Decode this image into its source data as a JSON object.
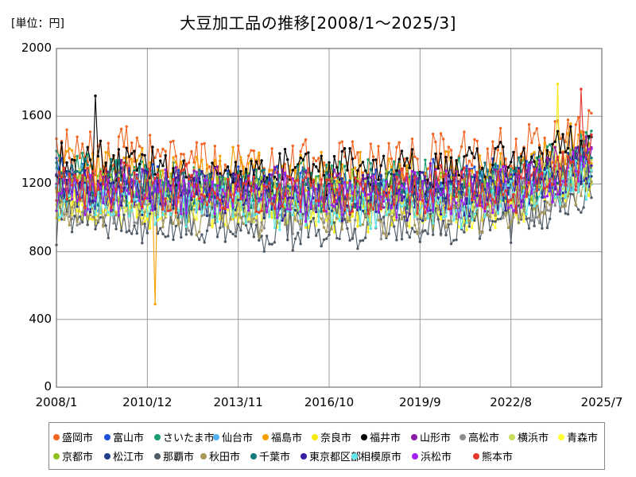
{
  "header": {
    "unit_label": "[単位：円]",
    "title": "大豆加工品の推移[2008/1～2025/3]"
  },
  "chart_data": {
    "type": "line",
    "title": "大豆加工品の推移[2008/1～2025/3]",
    "unit": "[単位：円]",
    "xlabel": "",
    "ylabel": "",
    "ylim": [
      0,
      2000
    ],
    "y_ticks": [
      "0",
      "400",
      "800",
      "1200",
      "1600",
      "2000"
    ],
    "x_range": [
      "2008/1",
      "2025/7"
    ],
    "x_ticks": [
      "2008/1",
      "2010/12",
      "2013/11",
      "2016/10",
      "2019/9",
      "2022/8",
      "2025/7"
    ],
    "grid": true,
    "legend_position": "bottom",
    "series": [
      {
        "name": "盛岡市",
        "color": "#f26522",
        "base": 1380,
        "amp": 150,
        "extremes": [],
        "values": []
      },
      {
        "name": "富山市",
        "color": "#1f4fd8",
        "base": 1230,
        "amp": 130,
        "extremes": [],
        "values": []
      },
      {
        "name": "さいたま市",
        "color": "#1a9e6e",
        "base": 1260,
        "amp": 120,
        "extremes": [],
        "values": []
      },
      {
        "name": "仙台市",
        "color": "#4fb3f0",
        "base": 1180,
        "amp": 110,
        "extremes": [],
        "values": []
      },
      {
        "name": "福島市",
        "color": "#f5a000",
        "base": 1300,
        "amp": 140,
        "extremes": [
          {
            "date": "2011/3",
            "value": 490
          }
        ],
        "values": []
      },
      {
        "name": "奈良市",
        "color": "#f4ea0f",
        "base": 1120,
        "amp": 120,
        "extremes": [
          {
            "date": "2024/2",
            "value": 1790
          }
        ],
        "values": []
      },
      {
        "name": "福井市",
        "color": "#000000",
        "base": 1330,
        "amp": 120,
        "extremes": [
          {
            "date": "2009/4",
            "value": 1720
          }
        ],
        "values": []
      },
      {
        "name": "山形市",
        "color": "#8a1ca8",
        "base": 1230,
        "amp": 120,
        "extremes": [],
        "values": []
      },
      {
        "name": "高松市",
        "color": "#8c8c8c",
        "base": 1080,
        "amp": 120,
        "extremes": [],
        "values": []
      },
      {
        "name": "横浜市",
        "color": "#c6de5a",
        "base": 1160,
        "amp": 110,
        "extremes": [],
        "values": []
      },
      {
        "name": "青森市",
        "color": "#ffff33",
        "base": 1100,
        "amp": 110,
        "extremes": [],
        "values": []
      },
      {
        "name": "京都市",
        "color": "#8fc31f",
        "base": 1200,
        "amp": 110,
        "extremes": [],
        "values": []
      },
      {
        "name": "松江市",
        "color": "#1e3f8a",
        "base": 1170,
        "amp": 110,
        "extremes": [],
        "values": []
      },
      {
        "name": "那覇市",
        "color": "#4f5b66",
        "base": 1000,
        "amp": 110,
        "extremes": [
          {
            "date": "2008/1",
            "value": 840
          }
        ],
        "values": []
      },
      {
        "name": "秋田市",
        "color": "#a89a5a",
        "base": 1080,
        "amp": 110,
        "extremes": [],
        "values": []
      },
      {
        "name": "千葉市",
        "color": "#127a7a",
        "base": 1230,
        "amp": 110,
        "extremes": [],
        "values": []
      },
      {
        "name": "東京都区部",
        "color": "#3a1c9e",
        "base": 1180,
        "amp": 110,
        "extremes": [],
        "values": []
      },
      {
        "name": "相模原市",
        "color": "#5ee8ea",
        "base": 1120,
        "amp": 110,
        "extremes": [],
        "values": []
      },
      {
        "name": "浜松市",
        "color": "#a020f0",
        "base": 1180,
        "amp": 120,
        "extremes": [],
        "values": []
      },
      {
        "name": "熊本市",
        "color": "#e6372e",
        "base": 1200,
        "amp": 130,
        "extremes": [
          {
            "date": "2024/11",
            "value": 1760
          }
        ],
        "values": []
      }
    ]
  }
}
